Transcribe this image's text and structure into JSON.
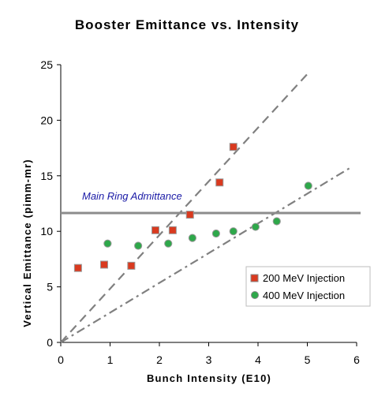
{
  "chart_data": {
    "type": "scatter",
    "title": "Booster Emittance vs. Intensity",
    "xlabel": "Bunch Intensity (E10)",
    "ylabel": "Vertical Emittance (pimm-mr)",
    "xlim": [
      0,
      6
    ],
    "ylim": [
      0,
      25
    ],
    "xticks": [
      "0",
      "1",
      "2",
      "3",
      "4",
      "5",
      "6"
    ],
    "yticks": [
      "0",
      "5",
      "10",
      "15",
      "20",
      "25"
    ],
    "grid": false,
    "legend_position": "bottom-right",
    "series": [
      {
        "name": "200 MeV Injection",
        "marker": "square",
        "color": "#d93a1f",
        "points": [
          {
            "x": 0.35,
            "y": 6.7
          },
          {
            "x": 0.88,
            "y": 7.0
          },
          {
            "x": 1.43,
            "y": 6.9
          },
          {
            "x": 1.92,
            "y": 10.1
          },
          {
            "x": 2.27,
            "y": 10.1
          },
          {
            "x": 2.62,
            "y": 11.5
          },
          {
            "x": 3.22,
            "y": 14.4
          },
          {
            "x": 3.5,
            "y": 17.6
          }
        ]
      },
      {
        "name": "400 MeV Injection",
        "marker": "circle",
        "color": "#2ea84a",
        "points": [
          {
            "x": 0.95,
            "y": 8.9
          },
          {
            "x": 1.57,
            "y": 8.7
          },
          {
            "x": 2.18,
            "y": 8.9
          },
          {
            "x": 2.67,
            "y": 9.4
          },
          {
            "x": 3.15,
            "y": 9.8
          },
          {
            "x": 3.5,
            "y": 10.0
          },
          {
            "x": 3.95,
            "y": 10.4
          },
          {
            "x": 4.38,
            "y": 10.9
          },
          {
            "x": 5.02,
            "y": 14.1
          }
        ]
      }
    ],
    "reference_lines": [
      {
        "style": "dashed",
        "color": "#808080",
        "from": [
          0,
          0
        ],
        "to": [
          5.05,
          24.4
        ]
      },
      {
        "style": "dash-dot",
        "color": "#808080",
        "from": [
          0,
          0
        ],
        "to": [
          5.9,
          15.8
        ]
      }
    ],
    "horizontal_line": {
      "y": 11.65,
      "color": "#8c8c8c",
      "label": "Main Ring Admittance",
      "label_color": "#1a1aa6"
    }
  }
}
